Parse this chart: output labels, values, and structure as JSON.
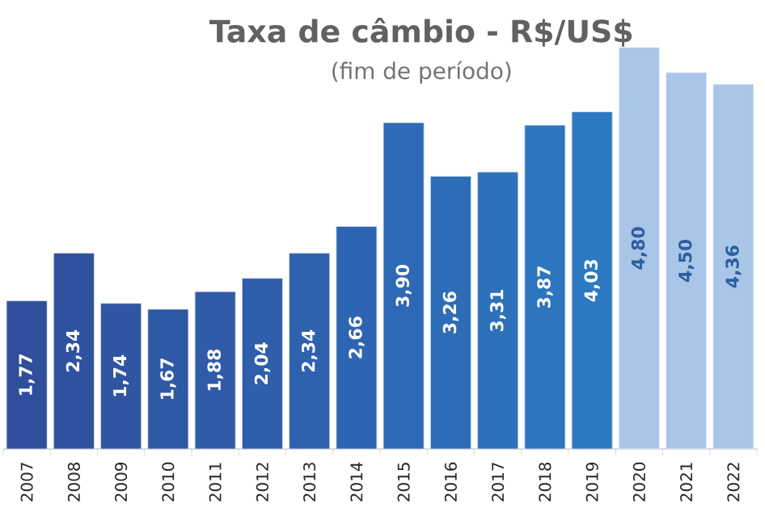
{
  "chart_data": {
    "type": "bar",
    "title": "Taxa de câmbio - R$/US$",
    "subtitle": "(fim de período)",
    "categories": [
      "2007",
      "2008",
      "2009",
      "2010",
      "2011",
      "2012",
      "2013",
      "2014",
      "2015",
      "2016",
      "2017",
      "2018",
      "2019",
      "2020",
      "2021",
      "2022"
    ],
    "values": [
      1.77,
      2.34,
      1.74,
      1.67,
      1.88,
      2.04,
      2.34,
      2.66,
      3.9,
      3.26,
      3.31,
      3.87,
      4.03,
      4.8,
      4.5,
      4.36
    ],
    "value_labels": [
      "1,77",
      "2,34",
      "1,74",
      "1,67",
      "1,88",
      "2,04",
      "2,34",
      "2,66",
      "3,90",
      "3,26",
      "3,31",
      "3,87",
      "4,03",
      "4,80",
      "4,50",
      "4,36"
    ],
    "colors": [
      "#2f4f9c",
      "#2f52a0",
      "#2f55a3",
      "#2f58a6",
      "#2f5ba9",
      "#2e5eac",
      "#2e62af",
      "#2e65b2",
      "#2e69b5",
      "#2d6db8",
      "#2d71bb",
      "#2d75be",
      "#2d79c1",
      "#a9c5e8",
      "#a9c5e8",
      "#a9c5e8"
    ],
    "orientation": "vertical"
  }
}
